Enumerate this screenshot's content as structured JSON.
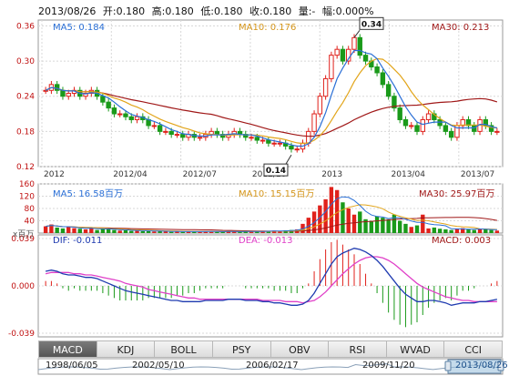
{
  "header": {
    "date": "2013/08/26",
    "open": "开:0.180",
    "high": "高:0.180",
    "low": "低:0.180",
    "close": "收:0.180",
    "volume": "量:-",
    "change": "幅:0.000%"
  },
  "price_legend": {
    "ma5": "MA5: 0.184",
    "ma10": "MA10: 0.176",
    "ma30": "MA30: 0.213"
  },
  "volume_legend": {
    "ma5": "MA5: 16.58百万",
    "ma10": "MA10: 15.15百万",
    "ma30": "MA30: 25.97百万",
    "unit": "x百万"
  },
  "macd_legend": {
    "dif": "DIF: -0.011",
    "dea": "DEA: -0.013",
    "macd": "MACD: 0.003"
  },
  "tabs": [
    "MACD",
    "KDJ",
    "BOLL",
    "PSY",
    "OBV",
    "RSI",
    "WVAD",
    "CCI"
  ],
  "active_tab": "MACD",
  "navigator": {
    "dates": [
      "1998/06/05",
      "2002/05/10",
      "2006/02/17",
      "2009/11/20",
      "2013/08/26"
    ]
  },
  "colors": {
    "up": "#e0211b",
    "down": "#1a9a1a",
    "ma5": "#2a6fd6",
    "ma10": "#e2a51a",
    "ma30": "#a01818",
    "dif": "#1f3bb0",
    "dea": "#e040c8",
    "grid": "#d8d8d8"
  },
  "chart_data": [
    {
      "type": "candlestick",
      "x_ticks": [
        "2012",
        "2012/04",
        "2012/07",
        "2012/10",
        "2013",
        "2013/04",
        "2013/07"
      ],
      "y_ticks": [
        0.12,
        0.18,
        0.24,
        0.3,
        0.36
      ],
      "ylim": [
        0.12,
        0.37
      ],
      "annotations": [
        {
          "label": "0.34",
          "value": 0.34
        },
        {
          "label": "0.14",
          "value": 0.14
        }
      ],
      "series": [
        {
          "name": "MA5",
          "last": 0.184
        },
        {
          "name": "MA10",
          "last": 0.176
        },
        {
          "name": "MA30",
          "last": 0.213
        }
      ],
      "close": [
        0.25,
        0.26,
        0.25,
        0.24,
        0.245,
        0.25,
        0.24,
        0.245,
        0.25,
        0.24,
        0.23,
        0.22,
        0.21,
        0.21,
        0.205,
        0.2,
        0.205,
        0.2,
        0.19,
        0.19,
        0.18,
        0.18,
        0.175,
        0.175,
        0.17,
        0.175,
        0.17,
        0.17,
        0.175,
        0.18,
        0.175,
        0.17,
        0.175,
        0.18,
        0.175,
        0.17,
        0.17,
        0.165,
        0.165,
        0.16,
        0.16,
        0.16,
        0.155,
        0.15,
        0.15,
        0.16,
        0.18,
        0.21,
        0.24,
        0.27,
        0.31,
        0.32,
        0.3,
        0.32,
        0.34,
        0.31,
        0.3,
        0.29,
        0.28,
        0.26,
        0.24,
        0.22,
        0.2,
        0.19,
        0.19,
        0.18,
        0.2,
        0.21,
        0.2,
        0.19,
        0.18,
        0.17,
        0.19,
        0.2,
        0.19,
        0.18,
        0.2,
        0.19,
        0.18,
        0.18
      ]
    },
    {
      "type": "bar",
      "name": "volume",
      "unit": "百万",
      "y_ticks": [
        0,
        40,
        80,
        120,
        160
      ],
      "ylim": [
        0,
        160
      ],
      "values": [
        22,
        28,
        18,
        15,
        20,
        16,
        14,
        12,
        18,
        10,
        14,
        12,
        10,
        8,
        9,
        7,
        8,
        6,
        7,
        5,
        6,
        5,
        4,
        5,
        4,
        5,
        6,
        4,
        5,
        6,
        4,
        5,
        6,
        5,
        4,
        5,
        6,
        7,
        5,
        6,
        8,
        7,
        9,
        10,
        12,
        30,
        50,
        70,
        90,
        110,
        150,
        140,
        100,
        80,
        60,
        70,
        45,
        40,
        55,
        50,
        45,
        60,
        40,
        30,
        20,
        25,
        60,
        15,
        18,
        14,
        12,
        10,
        14,
        16,
        12,
        10,
        14,
        12,
        10,
        8
      ],
      "series": [
        {
          "name": "MA5",
          "last": 16.58
        },
        {
          "name": "MA10",
          "last": 15.15
        },
        {
          "name": "MA30",
          "last": 25.97
        }
      ]
    },
    {
      "type": "line",
      "name": "MACD",
      "y_ticks": [
        -0.039,
        0.0,
        0.039
      ],
      "ylim": [
        -0.039,
        0.039
      ],
      "series": [
        {
          "name": "DIF",
          "last": -0.011,
          "values": [
            0.012,
            0.013,
            0.012,
            0.01,
            0.009,
            0.009,
            0.008,
            0.007,
            0.007,
            0.006,
            0.004,
            0.002,
            0.0,
            -0.002,
            -0.004,
            -0.005,
            -0.006,
            -0.007,
            -0.008,
            -0.009,
            -0.01,
            -0.011,
            -0.012,
            -0.012,
            -0.013,
            -0.013,
            -0.013,
            -0.013,
            -0.012,
            -0.012,
            -0.012,
            -0.012,
            -0.011,
            -0.011,
            -0.011,
            -0.012,
            -0.012,
            -0.012,
            -0.013,
            -0.013,
            -0.014,
            -0.014,
            -0.015,
            -0.016,
            -0.016,
            -0.015,
            -0.012,
            -0.006,
            0.002,
            0.01,
            0.018,
            0.024,
            0.027,
            0.029,
            0.031,
            0.03,
            0.028,
            0.025,
            0.021,
            0.016,
            0.01,
            0.004,
            -0.002,
            -0.007,
            -0.01,
            -0.013,
            -0.013,
            -0.012,
            -0.012,
            -0.013,
            -0.014,
            -0.016,
            -0.015,
            -0.014,
            -0.014,
            -0.014,
            -0.013,
            -0.013,
            -0.012,
            -0.011
          ]
        },
        {
          "name": "DEA",
          "last": -0.013,
          "values": [
            0.01,
            0.011,
            0.011,
            0.011,
            0.011,
            0.01,
            0.01,
            0.009,
            0.009,
            0.008,
            0.007,
            0.006,
            0.005,
            0.004,
            0.002,
            0.001,
            0.0,
            -0.001,
            -0.003,
            -0.004,
            -0.005,
            -0.006,
            -0.007,
            -0.008,
            -0.009,
            -0.01,
            -0.01,
            -0.011,
            -0.011,
            -0.011,
            -0.011,
            -0.011,
            -0.011,
            -0.011,
            -0.011,
            -0.011,
            -0.011,
            -0.011,
            -0.012,
            -0.012,
            -0.012,
            -0.012,
            -0.013,
            -0.013,
            -0.013,
            -0.014,
            -0.013,
            -0.012,
            -0.009,
            -0.005,
            0.0,
            0.005,
            0.01,
            0.014,
            0.018,
            0.021,
            0.023,
            0.024,
            0.024,
            0.023,
            0.021,
            0.018,
            0.014,
            0.01,
            0.006,
            0.002,
            -0.001,
            -0.003,
            -0.005,
            -0.007,
            -0.009,
            -0.01,
            -0.011,
            -0.012,
            -0.012,
            -0.013,
            -0.013,
            -0.013,
            -0.013,
            -0.013
          ]
        },
        {
          "name": "MACD",
          "last": 0.003
        }
      ]
    }
  ]
}
